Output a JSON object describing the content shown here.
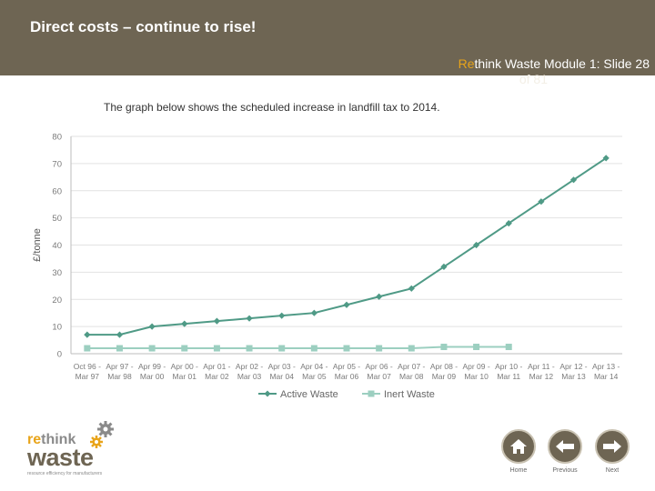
{
  "header": {
    "title": "Direct costs – continue to rise!",
    "slide_ref_accent": "Re",
    "slide_ref_rest": "think Waste Module 1: Slide 28",
    "slide_ref_line2": "of 81"
  },
  "subtitle": "The graph below shows the scheduled increase in landfill tax to 2014.",
  "chart_data": {
    "type": "line",
    "ylabel": "£/tonne",
    "ylim": [
      0,
      80
    ],
    "yticks": [
      0,
      10,
      20,
      30,
      40,
      50,
      60,
      70,
      80
    ],
    "grid": true,
    "legend_position": "bottom",
    "categories": [
      [
        "Oct 96 -",
        "Mar 97"
      ],
      [
        "Apr 97 -",
        "Mar 98"
      ],
      [
        "Apr 99 -",
        "Mar 00"
      ],
      [
        "Apr 00 -",
        "Mar 01"
      ],
      [
        "Apr 01 -",
        "Mar 02"
      ],
      [
        "Apr 02 -",
        "Mar 03"
      ],
      [
        "Apr 03 -",
        "Mar 04"
      ],
      [
        "Apr 04 -",
        "Mar 05"
      ],
      [
        "Apr 05 -",
        "Mar 06"
      ],
      [
        "Apr 06 -",
        "Mar 07"
      ],
      [
        "Apr 07 -",
        "Mar 08"
      ],
      [
        "Apr 08 -",
        "Mar 09"
      ],
      [
        "Apr 09 -",
        "Mar 10"
      ],
      [
        "Apr 10 -",
        "Mar 11"
      ],
      [
        "Apr 11 -",
        "Mar 12"
      ],
      [
        "Apr 12 -",
        "Mar 13"
      ],
      [
        "Apr 13 -",
        "Mar 14"
      ]
    ],
    "series": [
      {
        "name": "Active Waste",
        "color": "#4f9a86",
        "marker": "diamond",
        "values": [
          7,
          7,
          10,
          11,
          12,
          13,
          14,
          15,
          18,
          21,
          24,
          32,
          40,
          48,
          56,
          64,
          72
        ]
      },
      {
        "name": "Inert Waste",
        "color": "#9ccfc0",
        "marker": "square",
        "values": [
          2,
          2,
          2,
          2,
          2,
          2,
          2,
          2,
          2,
          2,
          2,
          2.5,
          2.5,
          2.5,
          null,
          null,
          null
        ]
      }
    ]
  },
  "nav": {
    "home_label": "Home",
    "previous_label": "Previous",
    "next_label": "Next"
  },
  "logo": {
    "accent": "re",
    "rest": "think",
    "word": "waste",
    "tagline": "resource efficiency for manufacturers"
  },
  "colors": {
    "header_bg": "#6e6553",
    "accent": "#e8a41a"
  }
}
